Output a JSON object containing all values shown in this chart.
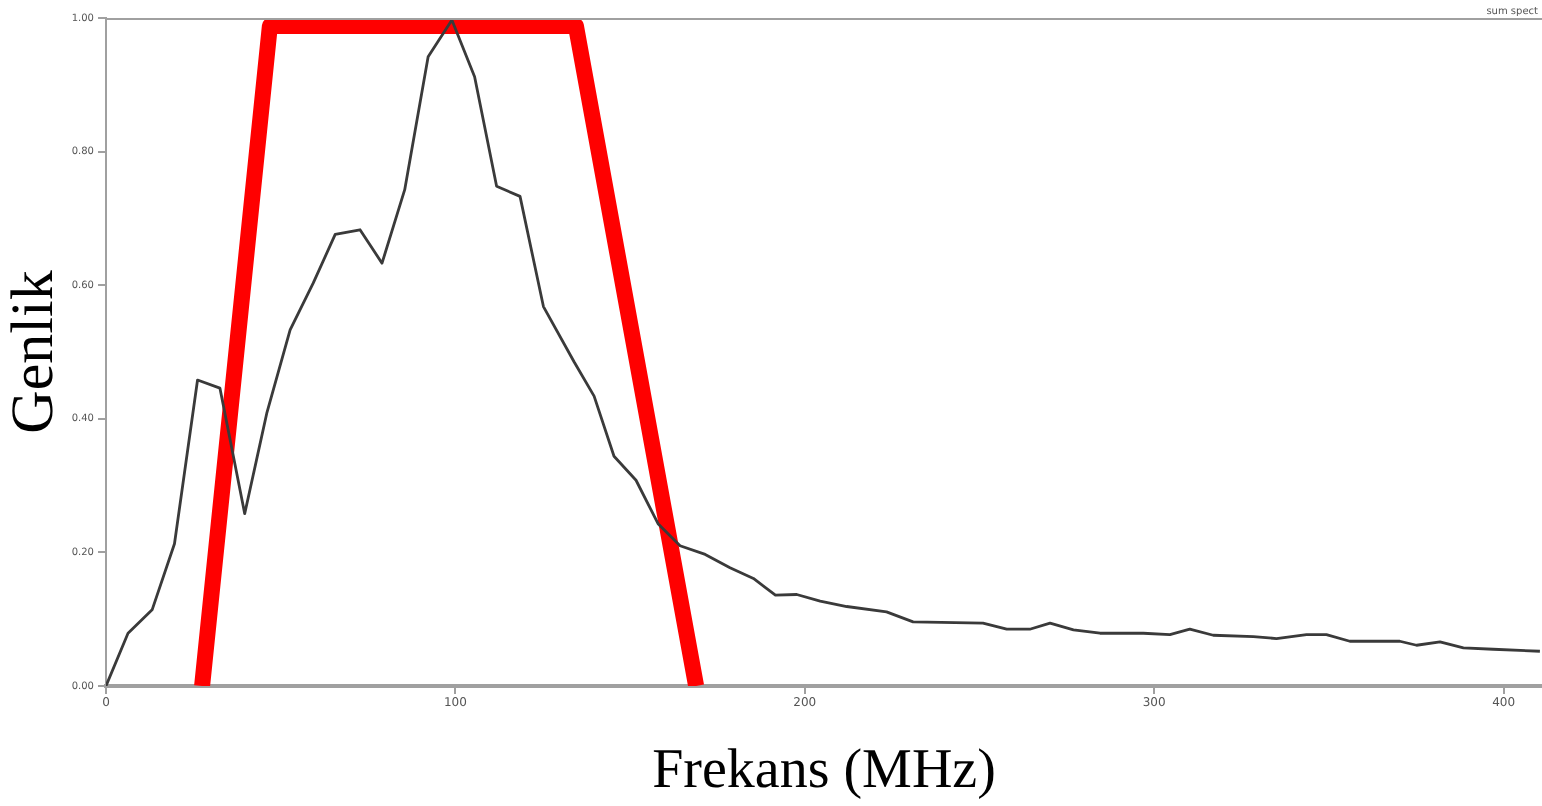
{
  "chart_data": {
    "type": "line",
    "xlabel": "Frekans (MHz)",
    "ylabel": "Genlik",
    "annotations": [
      "sum spect"
    ],
    "xlim": [
      0,
      411
    ],
    "xticks": [
      0,
      100,
      200,
      300,
      400
    ],
    "ylim": [
      0,
      1
    ],
    "yticks": [
      {
        "value": 0,
        "label": "0.00"
      },
      {
        "value": 0.2,
        "label": "0.20"
      },
      {
        "value": 0.4,
        "label": "0.40"
      },
      {
        "value": 0.6,
        "label": "0.60"
      },
      {
        "value": 0.8,
        "label": "0.80"
      },
      {
        "value": 1,
        "label": "1.00"
      }
    ],
    "grid": false,
    "legend": false,
    "series": [
      {
        "color": "#3a3a3a",
        "x": [
          0,
          6.3,
          13.2,
          19.6,
          26.2,
          32.6,
          39.7,
          46,
          52.7,
          59.3,
          65.6,
          72.7,
          79,
          85.5,
          92.2,
          99,
          105.5,
          111.8,
          118.5,
          125.2,
          134,
          139.7,
          145.4,
          151.7,
          158,
          164.3,
          171.5,
          178.6,
          185.3,
          191.6,
          197.7,
          204.4,
          212,
          223.4,
          231,
          251,
          257.8,
          264.4,
          270.2,
          276.9,
          284.5,
          296.9,
          304.5,
          310.2,
          316.9,
          328.4,
          335,
          343.6,
          349.3,
          356,
          370.3,
          375.1,
          381.8,
          388.5,
          397,
          410.4
        ],
        "values": [
          0,
          0.079,
          0.114,
          0.213,
          0.458,
          0.446,
          0.258,
          0.408,
          0.533,
          0.603,
          0.676,
          0.683,
          0.633,
          0.743,
          0.942,
          0.997,
          0.912,
          0.748,
          0.733,
          0.568,
          0.485,
          0.434,
          0.344,
          0.308,
          0.243,
          0.21,
          0.197,
          0.177,
          0.161,
          0.136,
          0.137,
          0.127,
          0.119,
          0.111,
          0.096,
          0.094,
          0.085,
          0.085,
          0.094,
          0.084,
          0.079,
          0.079,
          0.077,
          0.085,
          0.076,
          0.074,
          0.071,
          0.077,
          0.077,
          0.067,
          0.067,
          0.061,
          0.066,
          0.057,
          0.055,
          0.052
        ]
      },
      {
        "color": "#ff0000",
        "x": [
          27.5,
          46.9,
          134.5,
          168.9
        ],
        "values": [
          0,
          0.988,
          0.988,
          0
        ]
      }
    ]
  }
}
